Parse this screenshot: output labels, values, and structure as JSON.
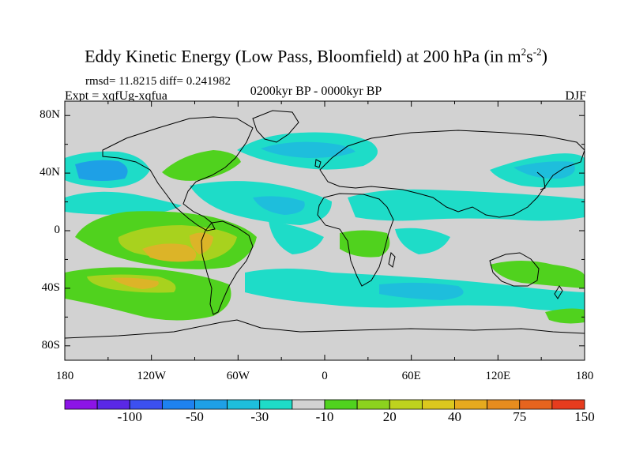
{
  "title": "Eddy Kinetic Energy (Low Pass, Bloomfield) at 200 hPa (in m",
  "title_sup1": "2",
  "title_mid": "s",
  "title_sup2": "-2",
  "title_end": ")",
  "stats": "rmsd= 11.8215 diff= 0.241982",
  "expt": "Expt = xqfUg-xqfua",
  "period": "0200kyr BP - 0000kyr BP",
  "season": "DJF",
  "lat_labels": [
    "80N",
    "40N",
    "0",
    "40S",
    "80S"
  ],
  "lon_labels": [
    "180",
    "120W",
    "60W",
    "0",
    "60E",
    "120E",
    "180"
  ],
  "colorbar": {
    "colors": [
      "#8c14e6",
      "#5a28e6",
      "#3c50f0",
      "#1e82f0",
      "#1ea0e6",
      "#1ebedc",
      "#1edcc8",
      "#d2d2d2",
      "#50d21e",
      "#8cd21e",
      "#bed21e",
      "#dcc81e",
      "#e6aa1e",
      "#e68c1e",
      "#e6641e",
      "#e63c1e"
    ],
    "labels": [
      "-100",
      "-50",
      "-30",
      "-10",
      "20",
      "40",
      "75",
      "150"
    ]
  },
  "colors": {
    "background": "#d2d2d2",
    "green": "#50d21e",
    "yellow_green": "#a8d21e",
    "orange": "#dcb428",
    "cyan": "#1edcc8",
    "teal": "#1ebedc",
    "blue": "#1ea0e6"
  }
}
